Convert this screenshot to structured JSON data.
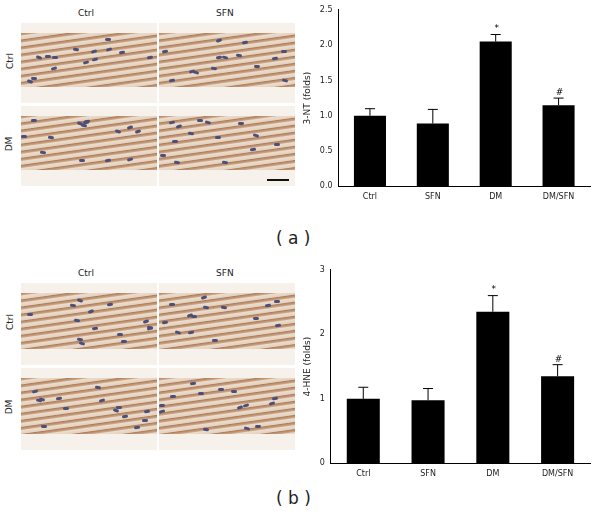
{
  "chart_data": [
    {
      "type": "bar",
      "panel": "( a )",
      "y_label": "3-NT (folds)",
      "categories": [
        "Ctrl",
        "SFN",
        "DM",
        "DM/SFN"
      ],
      "values": [
        1.0,
        0.89,
        2.05,
        1.15
      ],
      "errors": [
        0.1,
        0.2,
        0.1,
        0.1
      ],
      "color": "#000000",
      "ylim": [
        0,
        2.5
      ],
      "yticks": [
        {
          "value": 0,
          "label": "0.0"
        },
        0.5,
        {
          "value": 1,
          "label": "1.0"
        },
        1.5,
        {
          "value": 2,
          "label": "2.0"
        },
        2.5
      ],
      "grid": false,
      "annotations": [
        {
          "category": "DM",
          "text": "*"
        },
        {
          "category": "DM/SFN",
          "text": "#"
        }
      ]
    },
    {
      "type": "bar",
      "panel": "( b )",
      "y_label": "4-HNE (folds)",
      "categories": [
        "Ctrl",
        "SFN",
        "DM",
        "DM/SFN"
      ],
      "values": [
        1.0,
        0.98,
        2.35,
        1.35
      ],
      "errors": [
        0.18,
        0.18,
        0.25,
        0.18
      ],
      "color": "#000000",
      "ylim": [
        0,
        3
      ],
      "yticks": [
        0,
        1,
        2,
        3
      ],
      "grid": false,
      "annotations": [
        {
          "category": "DM",
          "text": "*"
        },
        {
          "category": "DM/SFN",
          "text": "#"
        }
      ]
    }
  ],
  "micrographs": [
    {
      "columns": [
        "Ctrl",
        "SFN"
      ],
      "rows": [
        "Ctrl",
        "DM"
      ]
    },
    {
      "columns": [
        "Ctrl",
        "SFN"
      ],
      "rows": [
        "Ctrl",
        "DM"
      ]
    }
  ]
}
